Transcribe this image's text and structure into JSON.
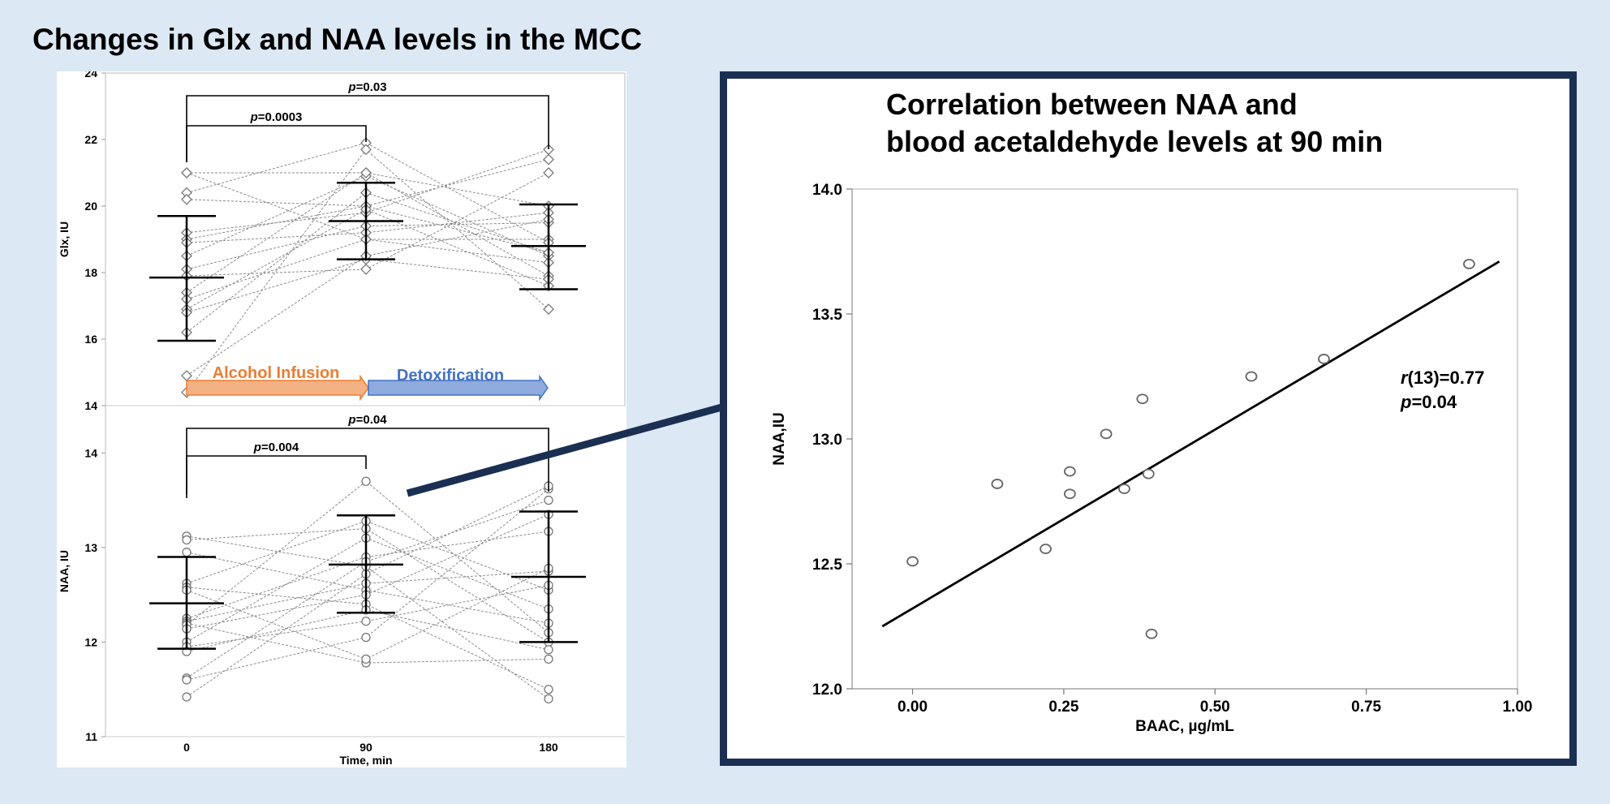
{
  "main_title": "Changes in Glx and NAA levels in the MCC",
  "colors": {
    "background": "#dce8f4",
    "frame": "#1b2f52",
    "alcohol_arrow": "#f4b183",
    "alcohol_text": "#ed7d31",
    "detox_arrow": "#8faadc",
    "detox_text": "#4472c4",
    "points": "#777777"
  },
  "chart_data": [
    {
      "id": "glx",
      "type": "scatter",
      "ylabel": "Glx, IU",
      "ylim": [
        14,
        24
      ],
      "yticks": [
        14,
        16,
        18,
        20,
        22,
        24
      ],
      "x": [
        0,
        90,
        180
      ],
      "xticklabels": [
        "0",
        "90",
        "180"
      ],
      "marker": "diamond",
      "series": [
        [
          21.0,
          21.0,
          20.0
        ],
        [
          21.0,
          19.0,
          19.0
        ],
        [
          20.4,
          21.9,
          18.9
        ],
        [
          20.2,
          20.0,
          18.6
        ],
        [
          19.2,
          19.8,
          21.7
        ],
        [
          19.0,
          20.0,
          21.4
        ],
        [
          18.9,
          19.2,
          19.8
        ],
        [
          18.5,
          20.9,
          18.5
        ],
        [
          18.1,
          19.4,
          19.5
        ],
        [
          17.9,
          18.1,
          21.0
        ],
        [
          17.4,
          21.0,
          17.9
        ],
        [
          17.2,
          19.0,
          18.3
        ],
        [
          16.9,
          19.9,
          17.6
        ],
        [
          16.8,
          18.4,
          17.8
        ],
        [
          16.2,
          20.4,
          18.6
        ],
        [
          14.9,
          18.5,
          19.6
        ],
        [
          14.4,
          21.7,
          16.9
        ]
      ],
      "summary": [
        {
          "x": 0,
          "mean": 17.85,
          "upper": 19.7,
          "lower": 15.95
        },
        {
          "x": 90,
          "mean": 19.55,
          "upper": 20.7,
          "lower": 18.4
        },
        {
          "x": 180,
          "mean": 18.8,
          "upper": 20.05,
          "lower": 17.5
        }
      ],
      "brackets": [
        {
          "from": 0,
          "to": 90,
          "p_label": "p",
          "value": "=0.0003"
        },
        {
          "from": 0,
          "to": 180,
          "p_label": "p",
          "value": "=0.03"
        }
      ]
    },
    {
      "id": "naa",
      "type": "scatter",
      "ylabel": "NAA, IU",
      "xlabel": "Time, min",
      "ylim": [
        11,
        14.5
      ],
      "yticks": [
        11,
        12,
        13,
        14
      ],
      "x": [
        0,
        90,
        180
      ],
      "xticklabels": [
        "0",
        "90",
        "180"
      ],
      "marker": "circle",
      "series": [
        [
          13.12,
          12.8,
          11.4
        ],
        [
          13.08,
          13.2,
          12.0
        ],
        [
          12.95,
          12.55,
          12.2
        ],
        [
          12.62,
          13.28,
          12.55
        ],
        [
          12.58,
          12.4,
          11.5
        ],
        [
          12.25,
          12.9,
          13.17
        ],
        [
          12.22,
          12.62,
          12.75
        ],
        [
          12.2,
          11.78,
          11.82
        ],
        [
          12.18,
          13.7,
          12.1
        ],
        [
          12.0,
          13.1,
          12.35
        ],
        [
          11.95,
          12.22,
          12.6
        ],
        [
          11.9,
          12.34,
          11.92
        ],
        [
          11.62,
          12.85,
          13.5
        ],
        [
          11.6,
          12.05,
          13.62
        ],
        [
          11.42,
          12.72,
          13.65
        ],
        [
          12.55,
          11.82,
          12.78
        ],
        [
          12.14,
          12.5,
          13.35
        ]
      ],
      "summary": [
        {
          "x": 0,
          "mean": 12.41,
          "upper": 12.9,
          "lower": 11.93
        },
        {
          "x": 90,
          "mean": 12.82,
          "upper": 13.34,
          "lower": 12.31
        },
        {
          "x": 180,
          "mean": 12.69,
          "upper": 13.38,
          "lower": 12.0
        }
      ],
      "brackets": [
        {
          "from": 0,
          "to": 90,
          "p_label": "p",
          "value": "=0.004"
        },
        {
          "from": 0,
          "to": 180,
          "p_label": "p",
          "value": "=0.04"
        }
      ]
    },
    {
      "id": "correlation",
      "type": "scatter",
      "title_line1": "Correlation between NAA and",
      "title_line2": "blood acetaldehyde levels at 90 min",
      "xlabel": "BAAC, µg/mL",
      "ylabel": "NAA,IU",
      "xlim": [
        -0.1,
        1.0
      ],
      "ylim": [
        12.0,
        14.0
      ],
      "xticks": [
        0.0,
        0.25,
        0.5,
        0.75,
        1.0
      ],
      "xticklabels": [
        "0.00",
        "0.25",
        "0.50",
        "0.75",
        "1.00"
      ],
      "yticks": [
        12.0,
        12.5,
        13.0,
        13.5,
        14.0
      ],
      "yticklabels": [
        "12.0",
        "12.5",
        "13.0",
        "13.5",
        "14.0"
      ],
      "points": [
        [
          0.0,
          12.51
        ],
        [
          0.14,
          12.82
        ],
        [
          0.22,
          12.56
        ],
        [
          0.26,
          12.87
        ],
        [
          0.26,
          12.78
        ],
        [
          0.32,
          13.02
        ],
        [
          0.35,
          12.8
        ],
        [
          0.38,
          13.16
        ],
        [
          0.39,
          12.86
        ],
        [
          0.395,
          12.22
        ],
        [
          0.56,
          13.25
        ],
        [
          0.68,
          13.32
        ],
        [
          0.92,
          13.7
        ]
      ],
      "fit_line": [
        [
          -0.05,
          12.25
        ],
        [
          0.97,
          13.71
        ]
      ],
      "stat_r_label": "r",
      "stat_r_value": "(13)=0.77",
      "stat_p_label": "p",
      "stat_p_value": "=0.04"
    }
  ],
  "infusion_label": "Alcohol Infusion",
  "detox_label": "Detoxification"
}
